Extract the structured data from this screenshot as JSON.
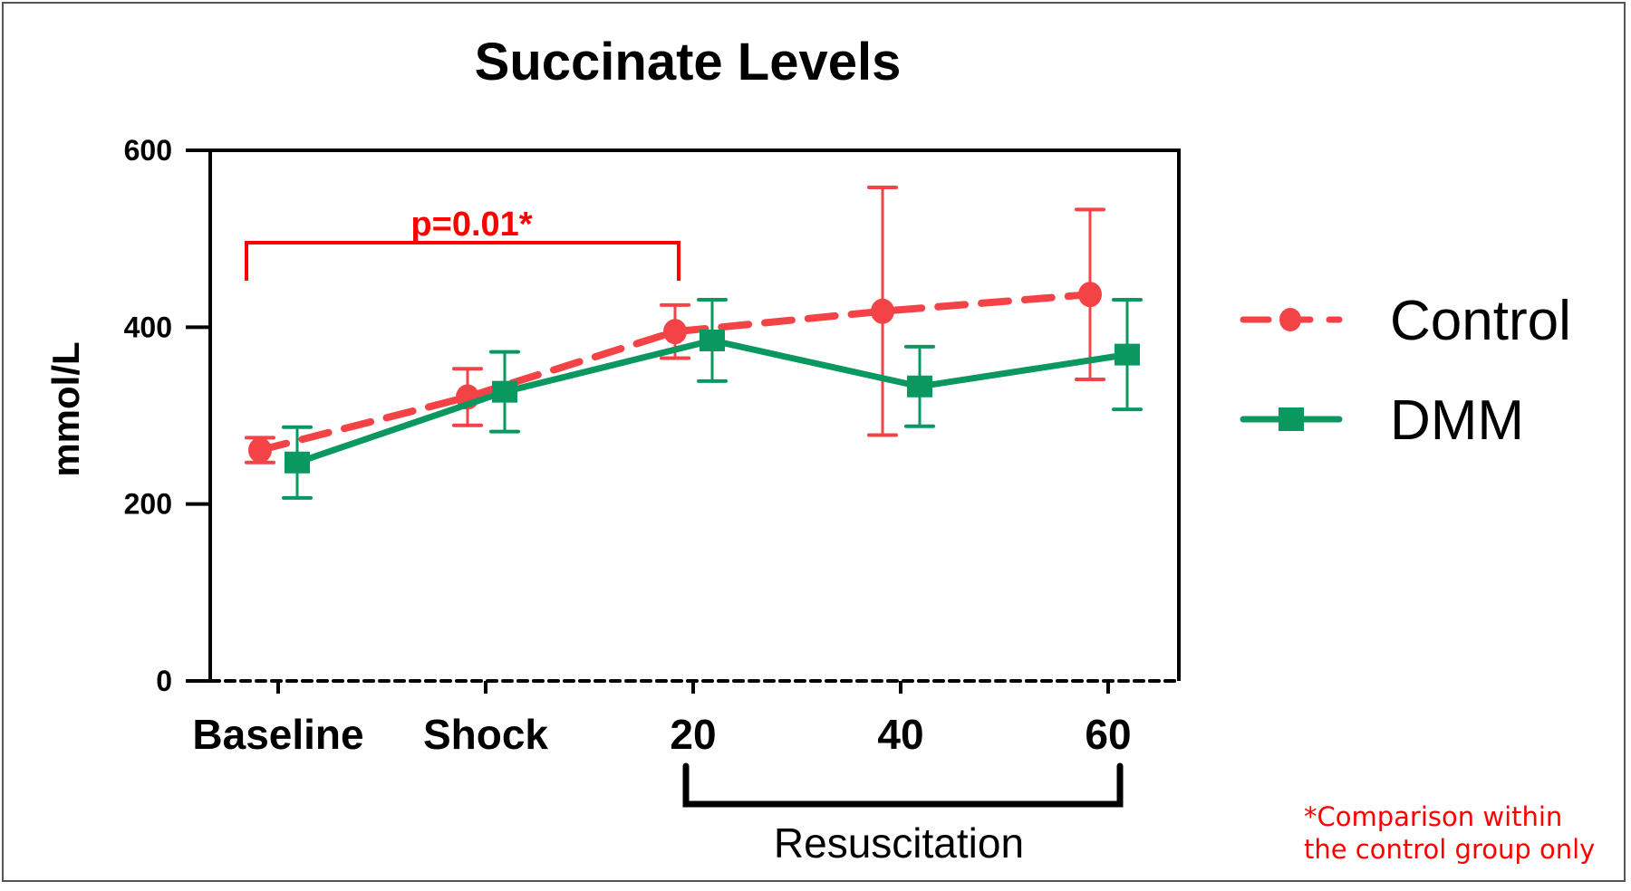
{
  "chart_data": {
    "type": "line",
    "title": "Succinate Levels",
    "xlabel": "",
    "ylabel": "mmol/L",
    "categories": [
      "Baseline",
      "Shock",
      "20",
      "40",
      "60"
    ],
    "ylim": [
      0,
      600
    ],
    "yticks": [
      0,
      200,
      400,
      600
    ],
    "grid": false,
    "legend_position": "right",
    "series": [
      {
        "name": "Control",
        "color": "#F44346",
        "line_style": "dashed",
        "marker": "circle",
        "values": [
          261,
          321,
          395,
          418,
          437
        ],
        "errors": [
          14,
          32,
          30,
          140,
          96
        ]
      },
      {
        "name": "DMM",
        "color": "#0A9860",
        "line_style": "solid",
        "marker": "square",
        "values": [
          247,
          327,
          385,
          333,
          369
        ],
        "errors": [
          40,
          45,
          46,
          45,
          62
        ]
      }
    ],
    "annotations": [
      {
        "type": "bracket",
        "text": "p=0.01*",
        "from": "Baseline",
        "to": "20",
        "color": "#FF0000"
      },
      {
        "type": "group-bracket",
        "text": "Resuscitation",
        "from": "20",
        "to": "60",
        "color": "#000000"
      }
    ],
    "footnote": [
      "*Comparison within",
      "the control group only"
    ],
    "footnote_color": "#FF0000"
  }
}
